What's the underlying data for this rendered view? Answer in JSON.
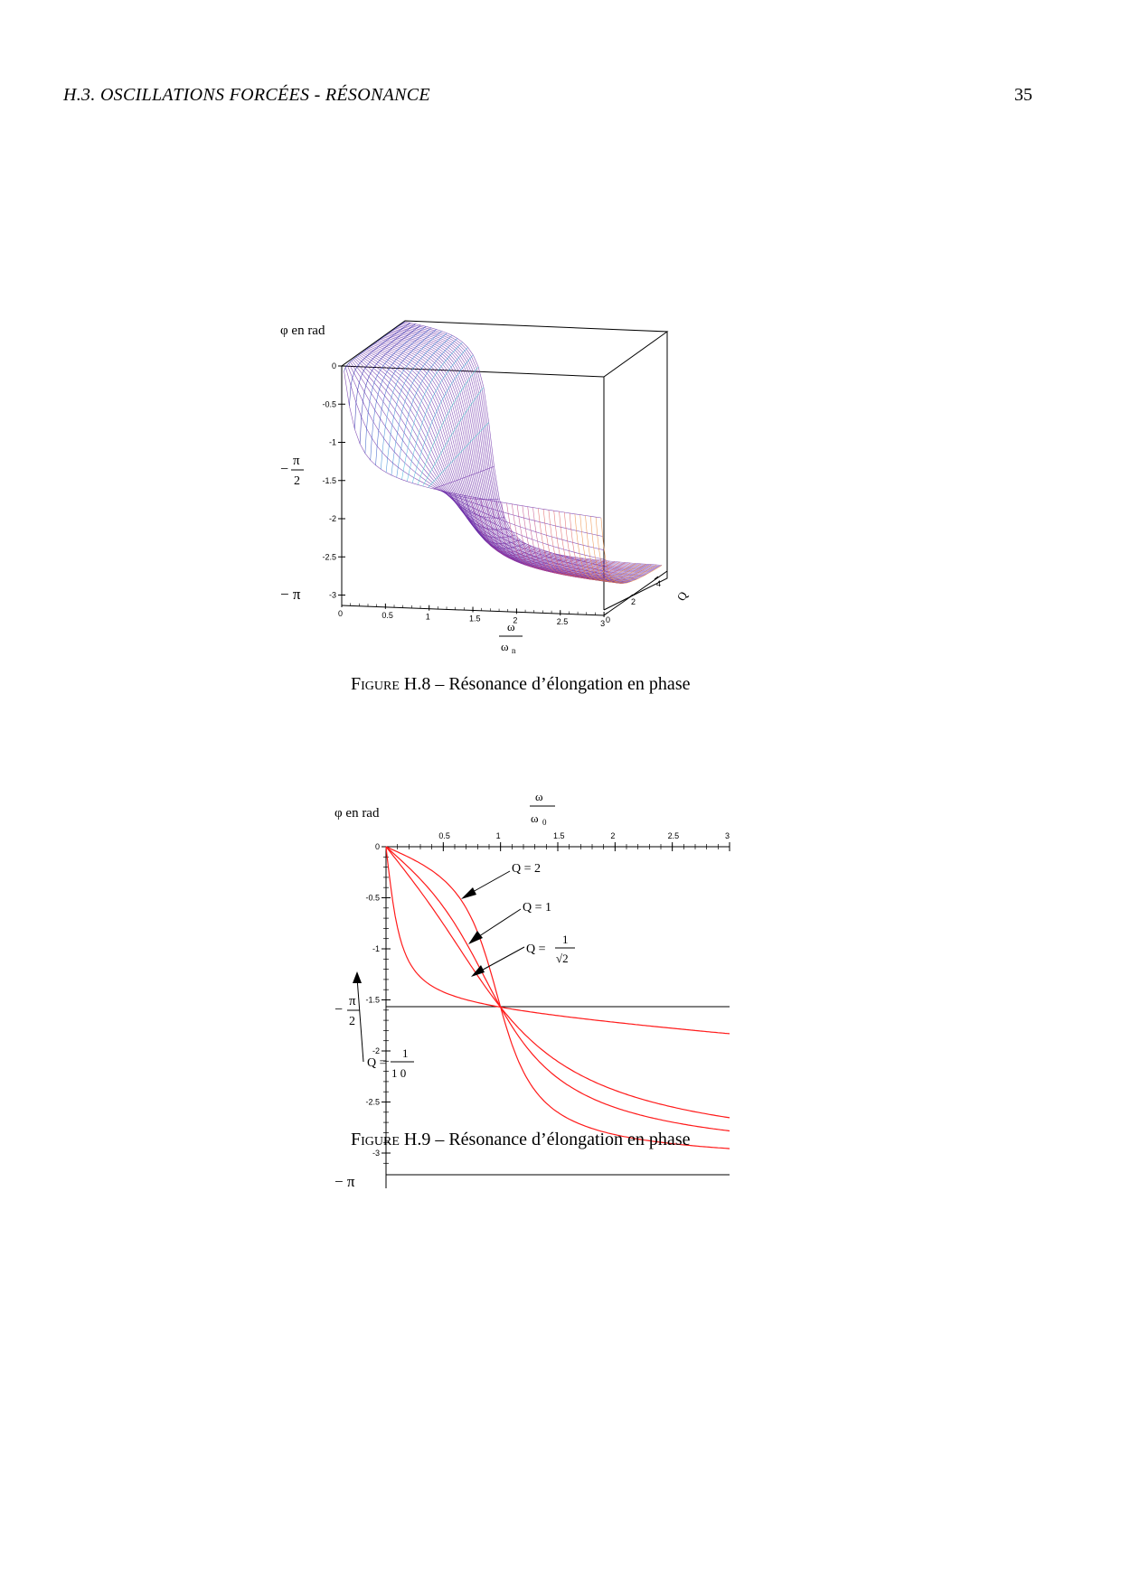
{
  "header": {
    "running_head": "H.3.  OSCILLATIONS FORCÉES - RÉSONANCE",
    "page_number": "35"
  },
  "figure_h8": {
    "caption_prefix": "Figure H.8",
    "caption_text": " – Résonance d’élongation en phase",
    "zlabel": "φ en rad",
    "xlabel_num": "ω",
    "xlabel_den": "ω",
    "xlabel_den_sub": "n",
    "ylabel": "Q",
    "pi_half_label_minus": "−",
    "pi_half_label_num": "π",
    "pi_half_label_den": "2",
    "minus_pi_label": "− π",
    "z_ticks": [
      "0",
      "-0.5",
      "-1",
      "-1.5",
      "-2",
      "-2.5",
      "-3"
    ],
    "x_ticks": [
      "0",
      "0.5",
      "1",
      "1.5",
      "2",
      "2.5",
      "3"
    ],
    "y_ticks": [
      "0",
      "2",
      "4"
    ]
  },
  "figure_h9": {
    "caption_prefix": "Figure H.9",
    "caption_text": " – Résonance d’élongation en phase",
    "ylabel": "φ en rad",
    "xlabel_num": "ω",
    "xlabel_den": "ω",
    "xlabel_den_sub": "0",
    "pi_half_label_minus": "−",
    "pi_half_label_num": "π",
    "pi_half_label_den": "2",
    "minus_pi_label": "− π",
    "annotations": {
      "q2": "Q = 2",
      "q1": "Q = 1",
      "qsqrt_prefix": "Q =",
      "qsqrt_num": "1",
      "qsqrt_den": "√2",
      "q10_prefix": "Q =",
      "q10_num": "1",
      "q10_den": "1 0"
    }
  },
  "chart_data": [
    {
      "type": "surface",
      "title": "",
      "xlabel": "ω/ωn",
      "ylabel": "Q",
      "zlabel": "φ en rad",
      "xlim": [
        0,
        3
      ],
      "ylim": [
        0,
        5
      ],
      "zlim": [
        -3.14159,
        0
      ],
      "x_ticks": [
        0,
        0.5,
        1,
        1.5,
        2,
        2.5,
        3
      ],
      "y_ticks": [
        0,
        2,
        4
      ],
      "z_ticks": [
        0,
        -0.5,
        -1,
        -1.5,
        -2,
        -2.5,
        -3
      ],
      "function": "phi = -atan2(x/Q, 1 - x^2)"
    },
    {
      "type": "line",
      "title": "",
      "xlabel": "ω/ω0",
      "ylabel": "φ en rad",
      "xlim": [
        0,
        3
      ],
      "ylim": [
        -3.14159,
        0
      ],
      "x_ticks": [
        0.5,
        1,
        1.5,
        2,
        2.5,
        3
      ],
      "y_ticks": [
        0,
        -0.5,
        -1,
        -1.5,
        -2,
        -2.5,
        -3
      ],
      "hlines": [
        -1.5708,
        -3.14159
      ],
      "x": [
        0,
        0.1,
        0.2,
        0.3,
        0.4,
        0.5,
        0.6,
        0.7,
        0.8,
        0.9,
        1.0,
        1.1,
        1.2,
        1.3,
        1.4,
        1.5,
        1.75,
        2.0,
        2.25,
        2.5,
        2.75,
        3.0
      ],
      "series": [
        {
          "name": "Q = 2",
          "Q": 2,
          "values": [
            0,
            -0.05,
            -0.1,
            -0.18,
            -0.27,
            -0.39,
            -0.56,
            -0.79,
            -1.1,
            -1.38,
            -1.57,
            -1.81,
            -1.99,
            -2.13,
            -2.24,
            -2.32,
            -2.54,
            -2.82,
            -2.9,
            -2.96,
            -3.0,
            -3.0
          ]
        },
        {
          "name": "Q = 1",
          "Q": 1,
          "values": [
            0,
            -0.1,
            -0.21,
            -0.32,
            -0.45,
            -0.59,
            -0.75,
            -0.94,
            -1.15,
            -1.36,
            -1.57,
            -1.78,
            -1.94,
            -2.06,
            -2.17,
            -2.27,
            -2.44,
            -2.55,
            -2.64,
            -2.7,
            -2.75,
            -2.78
          ]
        },
        {
          "name": "Q = 1/√2",
          "Q": 0.7071,
          "values": [
            0,
            -0.14,
            -0.29,
            -0.44,
            -0.59,
            -0.75,
            -0.9,
            -1.06,
            -1.22,
            -1.39,
            -1.57,
            -1.73,
            -1.86,
            -1.96,
            -2.05,
            -2.13,
            -2.27,
            -2.36,
            -2.44,
            -2.5,
            -2.56,
            -2.59
          ]
        },
        {
          "name": "Q = 1/10",
          "Q": 0.1,
          "values": [
            0,
            -0.79,
            -1.11,
            -1.27,
            -1.36,
            -1.43,
            -1.48,
            -1.52,
            -1.54,
            -1.57,
            -1.57,
            -1.66,
            -1.71,
            -1.75,
            -1.77,
            -1.81,
            -1.84,
            -1.88,
            -1.9,
            -1.92,
            -1.94,
            -1.95
          ]
        }
      ]
    }
  ]
}
